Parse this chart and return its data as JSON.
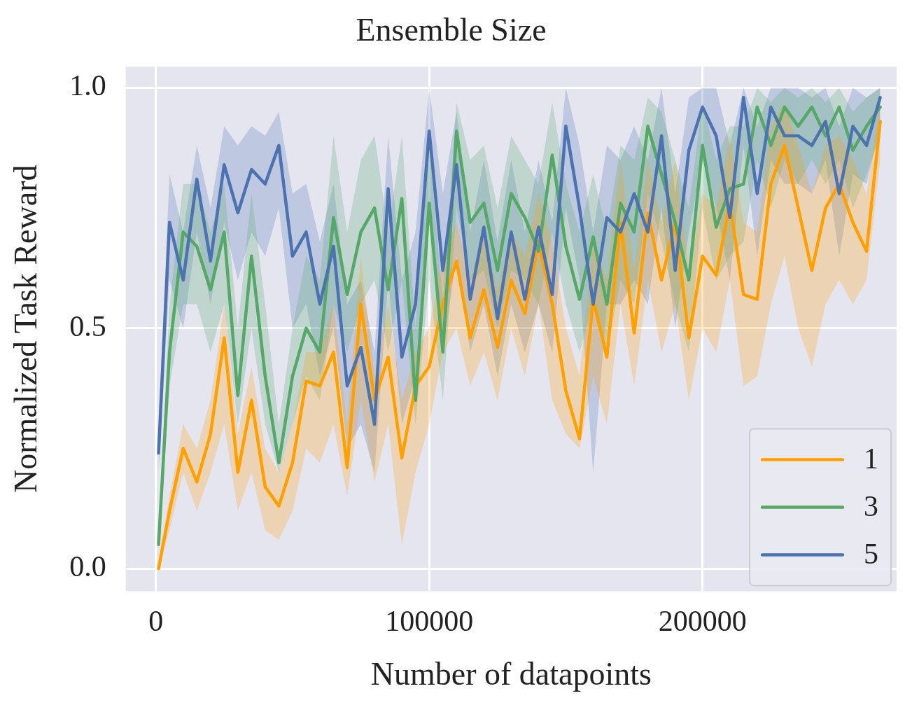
{
  "chart_data": {
    "type": "line",
    "title": "Ensemble Size",
    "xlabel": "Number of datapoints",
    "ylabel": "Normalized Task Reward",
    "x": [
      1000,
      5000,
      10000,
      15000,
      20000,
      25000,
      30000,
      35000,
      40000,
      45000,
      50000,
      55000,
      60000,
      65000,
      70000,
      75000,
      80000,
      85000,
      90000,
      95000,
      100000,
      105000,
      110000,
      115000,
      120000,
      125000,
      130000,
      135000,
      140000,
      145000,
      150000,
      155000,
      160000,
      165000,
      170000,
      175000,
      180000,
      185000,
      190000,
      195000,
      200000,
      205000,
      210000,
      215000,
      220000,
      225000,
      230000,
      235000,
      240000,
      245000,
      250000,
      255000,
      260000,
      265000
    ],
    "series": [
      {
        "name": "1",
        "color": "#ffa000",
        "values": [
          0,
          0.12,
          0.25,
          0.18,
          0.28,
          0.48,
          0.2,
          0.35,
          0.17,
          0.13,
          0.22,
          0.39,
          0.38,
          0.45,
          0.21,
          0.55,
          0.35,
          0.44,
          0.23,
          0.38,
          0.42,
          0.55,
          0.64,
          0.48,
          0.58,
          0.46,
          0.6,
          0.53,
          0.68,
          0.55,
          0.37,
          0.27,
          0.56,
          0.44,
          0.72,
          0.49,
          0.74,
          0.6,
          0.72,
          0.48,
          0.65,
          0.61,
          0.76,
          0.57,
          0.56,
          0.8,
          0.88,
          0.75,
          0.62,
          0.75,
          0.8,
          0.72,
          0.66,
          0.93
        ],
        "lower": [
          0,
          0.08,
          0.2,
          0.12,
          0.2,
          0.3,
          0.12,
          0.2,
          0.08,
          0.06,
          0.12,
          0.25,
          0.22,
          0.3,
          0.15,
          0.35,
          0.18,
          0.3,
          0.05,
          0.2,
          0.3,
          0.45,
          0.5,
          0.38,
          0.45,
          0.35,
          0.5,
          0.4,
          0.55,
          0.35,
          0.28,
          0.25,
          0.4,
          0.3,
          0.55,
          0.38,
          0.6,
          0.45,
          0.55,
          0.35,
          0.5,
          0.45,
          0.6,
          0.38,
          0.4,
          0.55,
          0.65,
          0.5,
          0.42,
          0.55,
          0.6,
          0.55,
          0.6,
          0.85
        ],
        "upper": [
          0.02,
          0.15,
          0.3,
          0.25,
          0.35,
          0.55,
          0.28,
          0.42,
          0.25,
          0.2,
          0.3,
          0.45,
          0.45,
          0.55,
          0.3,
          0.65,
          0.4,
          0.55,
          0.35,
          0.45,
          0.5,
          0.65,
          0.72,
          0.6,
          0.7,
          0.58,
          0.7,
          0.65,
          0.78,
          0.68,
          0.5,
          0.4,
          0.68,
          0.6,
          0.85,
          0.62,
          0.85,
          0.72,
          0.85,
          0.62,
          0.78,
          0.75,
          0.9,
          0.72,
          0.7,
          0.92,
          0.97,
          0.88,
          0.78,
          0.88,
          0.9,
          0.85,
          0.78,
          0.97
        ]
      },
      {
        "name": "3",
        "color": "#55a868",
        "values": [
          0.05,
          0.45,
          0.7,
          0.67,
          0.58,
          0.7,
          0.36,
          0.65,
          0.4,
          0.22,
          0.4,
          0.5,
          0.45,
          0.73,
          0.57,
          0.7,
          0.75,
          0.58,
          0.77,
          0.35,
          0.76,
          0.45,
          0.91,
          0.72,
          0.76,
          0.62,
          0.78,
          0.73,
          0.66,
          0.86,
          0.67,
          0.56,
          0.69,
          0.55,
          0.76,
          0.7,
          0.92,
          0.82,
          0.72,
          0.6,
          0.88,
          0.71,
          0.79,
          0.8,
          0.96,
          0.88,
          0.96,
          0.92,
          0.96,
          0.9,
          0.96,
          0.87,
          0.92,
          0.96
        ],
        "lower": [
          0.03,
          0.38,
          0.55,
          0.55,
          0.45,
          0.55,
          0.3,
          0.5,
          0.3,
          0.2,
          0.3,
          0.4,
          0.35,
          0.55,
          0.45,
          0.55,
          0.6,
          0.45,
          0.6,
          0.3,
          0.6,
          0.35,
          0.75,
          0.6,
          0.62,
          0.5,
          0.62,
          0.6,
          0.55,
          0.7,
          0.55,
          0.45,
          0.55,
          0.45,
          0.6,
          0.55,
          0.78,
          0.68,
          0.55,
          0.45,
          0.75,
          0.6,
          0.65,
          0.68,
          0.85,
          0.75,
          0.85,
          0.8,
          0.85,
          0.8,
          0.85,
          0.75,
          0.82,
          0.9
        ],
        "upper": [
          0.08,
          0.55,
          0.8,
          0.8,
          0.7,
          0.8,
          0.5,
          0.78,
          0.55,
          0.3,
          0.5,
          0.65,
          0.6,
          0.9,
          0.7,
          0.85,
          0.9,
          0.7,
          0.9,
          0.5,
          0.88,
          0.55,
          0.97,
          0.85,
          0.88,
          0.75,
          0.9,
          0.85,
          0.8,
          0.97,
          0.8,
          0.7,
          0.82,
          0.7,
          0.88,
          0.85,
          0.98,
          0.95,
          0.85,
          0.75,
          0.97,
          0.85,
          0.92,
          0.92,
          1.0,
          0.97,
          1.0,
          0.98,
          1.0,
          0.97,
          1.0,
          0.95,
          0.98,
          1.0
        ]
      },
      {
        "name": "5",
        "color": "#4c72b0",
        "values": [
          0.24,
          0.72,
          0.6,
          0.81,
          0.64,
          0.84,
          0.74,
          0.83,
          0.8,
          0.88,
          0.65,
          0.7,
          0.55,
          0.67,
          0.38,
          0.46,
          0.3,
          0.79,
          0.44,
          0.55,
          0.91,
          0.62,
          0.84,
          0.56,
          0.71,
          0.52,
          0.7,
          0.56,
          0.71,
          0.57,
          0.92,
          0.75,
          0.55,
          0.73,
          0.7,
          0.78,
          0.7,
          0.9,
          0.62,
          0.87,
          0.96,
          0.9,
          0.73,
          0.98,
          0.78,
          0.96,
          0.9,
          0.9,
          0.88,
          0.93,
          0.78,
          0.92,
          0.88,
          0.98
        ],
        "lower": [
          0.2,
          0.6,
          0.5,
          0.7,
          0.55,
          0.72,
          0.6,
          0.7,
          0.65,
          0.75,
          0.5,
          0.55,
          0.4,
          0.5,
          0.25,
          0.3,
          0.2,
          0.6,
          0.3,
          0.4,
          0.75,
          0.45,
          0.65,
          0.45,
          0.55,
          0.4,
          0.55,
          0.45,
          0.55,
          0.45,
          0.75,
          0.6,
          0.2,
          0.55,
          0.55,
          0.6,
          0.55,
          0.75,
          0.5,
          0.7,
          0.85,
          0.75,
          0.6,
          0.88,
          0.65,
          0.85,
          0.8,
          0.8,
          0.78,
          0.85,
          0.65,
          0.82,
          0.8,
          0.92
        ],
        "upper": [
          0.3,
          0.82,
          0.7,
          0.88,
          0.75,
          0.92,
          0.88,
          0.92,
          0.9,
          0.95,
          0.78,
          0.8,
          0.68,
          0.8,
          0.55,
          0.6,
          0.45,
          0.9,
          0.6,
          0.7,
          1.0,
          0.78,
          0.95,
          0.7,
          0.85,
          0.68,
          0.85,
          0.7,
          0.85,
          0.72,
          1.0,
          0.88,
          0.7,
          0.88,
          0.85,
          0.92,
          0.85,
          1.0,
          0.78,
          0.98,
          1.0,
          1.0,
          0.88,
          1.0,
          0.92,
          1.0,
          1.0,
          1.0,
          0.98,
          1.0,
          0.92,
          1.0,
          0.98,
          1.0
        ]
      }
    ],
    "xlim": [
      -11000,
      271000
    ],
    "ylim": [
      -0.047,
      1.044
    ],
    "xticks": [
      0,
      100000,
      200000
    ],
    "yticks": [
      {
        "value": 0,
        "label": "0.0"
      },
      {
        "value": 0.5,
        "label": "0.5"
      },
      {
        "value": 1,
        "label": "1.0"
      }
    ],
    "grid": true,
    "legend": "bottom right",
    "marker": "none",
    "line_style": "solid"
  }
}
